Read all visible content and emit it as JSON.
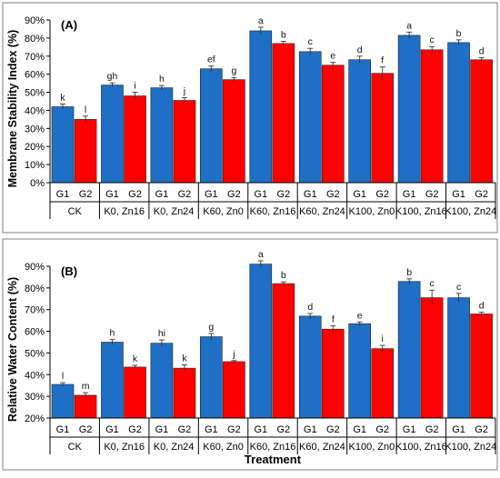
{
  "colors": {
    "g1": "#1f6fc6",
    "g2": "#ff0000",
    "frame": "#7f7f7f"
  },
  "chart_data": [
    {
      "type": "bar",
      "panel_label": "(A)",
      "ylabel": "Membrane Stability Index (%)",
      "xlabel": "",
      "ylim": [
        0,
        90
      ],
      "yticks": [
        0,
        10,
        20,
        30,
        40,
        50,
        60,
        70,
        80,
        90
      ],
      "yticks_labels": [
        "0",
        "10",
        "20",
        "30",
        "40",
        "50",
        "60",
        "70",
        "80",
        "90"
      ],
      "tick_suffix": "%",
      "grid": false,
      "categories": [
        "CK",
        "K0, Zn16",
        "K0, Zn24",
        "K60, Zn0",
        "K60, Zn16",
        "K60, Zn24",
        "K100, Zn0",
        "K100, Zn16",
        "K100, Zn24"
      ],
      "series": [
        {
          "name": "G1",
          "values": [
            42,
            54,
            52.5,
            63,
            84,
            72.5,
            68,
            81.5,
            77.5
          ],
          "errors": [
            1.5,
            1.2,
            1.2,
            1.5,
            2,
            1.8,
            2,
            1.8,
            1.5
          ],
          "letters": [
            "k",
            "gh",
            "h",
            "ef",
            "a",
            "c",
            "d",
            "a",
            "b"
          ]
        },
        {
          "name": "G2",
          "values": [
            35,
            48,
            45.5,
            57,
            77,
            65,
            60.5,
            73.5,
            68
          ],
          "errors": [
            1.8,
            2,
            1.5,
            1.2,
            1.2,
            1.5,
            3.5,
            1.8,
            1.2
          ],
          "letters": [
            "l",
            "i",
            "j",
            "g",
            "b",
            "e",
            "f",
            "c",
            "d"
          ]
        }
      ]
    },
    {
      "type": "bar",
      "panel_label": "(B)",
      "ylabel": "Relative Water Content (%)",
      "xlabel": "Treatment",
      "ylim": [
        20,
        90
      ],
      "yticks": [
        20,
        30,
        40,
        50,
        60,
        70,
        80,
        90
      ],
      "yticks_labels": [
        "20",
        "30",
        "40",
        "50",
        "60",
        "70",
        "80",
        "90"
      ],
      "tick_suffix": "%",
      "grid": false,
      "categories": [
        "CK",
        "K0, Zn16",
        "K0, Zn24",
        "K60, Zn0",
        "K60, Zn16",
        "K60, Zn24",
        "K100, Zn0",
        "K100, Zn16",
        "K100, Zn24"
      ],
      "series": [
        {
          "name": "G1",
          "values": [
            35.5,
            55,
            54.5,
            57.5,
            91,
            67,
            63.5,
            83,
            75.5
          ],
          "errors": [
            0.8,
            1.2,
            1.5,
            1.5,
            1.5,
            1.2,
            0.8,
            1.2,
            2
          ],
          "letters": [
            "l",
            "h",
            "hi",
            "g",
            "a",
            "d",
            "e",
            "b",
            "c"
          ]
        },
        {
          "name": "G2",
          "values": [
            30.5,
            43.5,
            43,
            46,
            82,
            61,
            52,
            75.5,
            68
          ],
          "errors": [
            1.2,
            0.8,
            1.5,
            0.5,
            0.8,
            1.5,
            1.5,
            3.5,
            0.8
          ],
          "letters": [
            "m",
            "k",
            "k",
            "j",
            "b",
            "f",
            "i",
            "c",
            "d"
          ]
        }
      ]
    }
  ]
}
